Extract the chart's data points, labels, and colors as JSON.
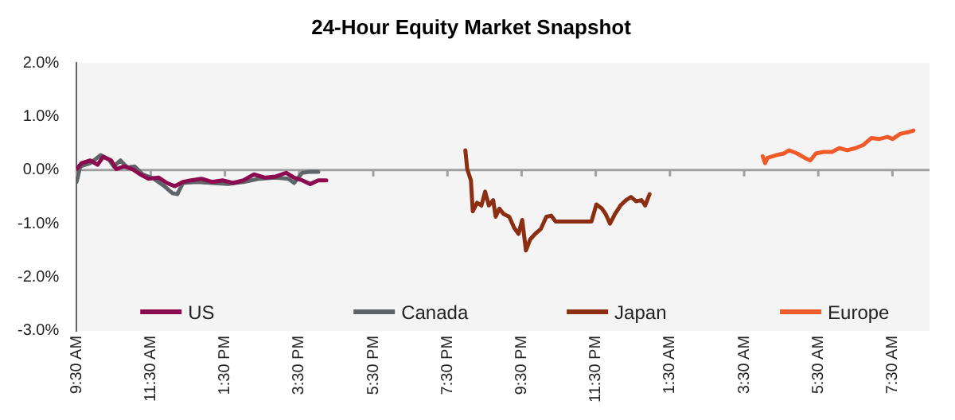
{
  "chart_data": {
    "type": "line",
    "title": "24-Hour Equity Market Snapshot",
    "xlim": [
      "--01-01T09:30",
      "--01-02T08:30"
    ],
    "xticks": [
      {
        "value": "--01-01T09:30",
        "label": "9:30 AM"
      },
      {
        "value": "--01-01T11:30",
        "label": "11:30 AM"
      },
      {
        "value": "--01-01T13:30",
        "label": "1:30 PM"
      },
      {
        "value": "--01-01T15:30",
        "label": "3:30 PM"
      },
      {
        "value": "--01-01T17:30",
        "label": "5:30 PM"
      },
      {
        "value": "--01-01T19:30",
        "label": "7:30 PM"
      },
      {
        "value": "--01-01T21:30",
        "label": "9:30 PM"
      },
      {
        "value": "--01-01T23:30",
        "label": "11:30 PM"
      },
      {
        "value": "--01-02T01:30",
        "label": "1:30 AM"
      },
      {
        "value": "--01-02T03:30",
        "label": "3:30 AM"
      },
      {
        "value": "--01-02T05:30",
        "label": "5:30 AM"
      },
      {
        "value": "--01-02T07:30",
        "label": "7:30 AM"
      }
    ],
    "ylim": [
      -3,
      2
    ],
    "yticks": [
      {
        "value": -3,
        "label": "-3.0%"
      },
      {
        "value": -2,
        "label": "-2.0%"
      },
      {
        "value": -1,
        "label": "-1.0%"
      },
      {
        "value": 0,
        "label": "0.0%"
      },
      {
        "value": 1,
        "label": "1.0%"
      },
      {
        "value": 2,
        "label": "2.0%"
      }
    ],
    "ref_lines": [
      {
        "axis": "y",
        "value": 0,
        "color": "#a0a0a0"
      }
    ],
    "grid": false,
    "legend": "bottom",
    "marker": "none",
    "line_style": "solid",
    "series": [
      {
        "name": "US",
        "color": "#8b0a50",
        "x": [
          "--01-01T09:30",
          "--01-01T09:38",
          "--01-01T09:52",
          "--01-01T10:04",
          "--01-01T10:13",
          "--01-01T10:26",
          "--01-01T10:34",
          "--01-01T10:47",
          "--01-01T11:00",
          "--01-01T11:13",
          "--01-01T11:26",
          "--01-01T11:43",
          "--01-01T11:56",
          "--01-01T12:09",
          "--01-01T12:22",
          "--01-01T12:35",
          "--01-01T12:52",
          "--01-01T13:09",
          "--01-01T13:26",
          "--01-01T13:43",
          "--01-01T14:00",
          "--01-01T14:17",
          "--01-01T14:35",
          "--01-01T14:52",
          "--01-01T15:09",
          "--01-01T15:22",
          "--01-01T15:35",
          "--01-01T15:48",
          "--01-01T16:01",
          "--01-01T16:14"
        ],
        "values": [
          0.02,
          0.13,
          0.18,
          0.1,
          0.25,
          0.18,
          0.02,
          0.07,
          0.02,
          -0.08,
          -0.16,
          -0.14,
          -0.24,
          -0.3,
          -0.22,
          -0.19,
          -0.16,
          -0.22,
          -0.19,
          -0.24,
          -0.19,
          -0.08,
          -0.14,
          -0.12,
          -0.05,
          -0.14,
          -0.19,
          -0.26,
          -0.19,
          -0.19
        ]
      },
      {
        "name": "Canada",
        "color": "#5f6468",
        "x": [
          "--01-01T09:30",
          "--01-01T09:36",
          "--01-01T09:52",
          "--01-01T10:09",
          "--01-01T10:22",
          "--01-01T10:30",
          "--01-01T10:41",
          "--01-01T10:52",
          "--01-01T11:04",
          "--01-01T11:17",
          "--01-01T11:35",
          "--01-01T11:52",
          "--01-01T12:05",
          "--01-01T12:13",
          "--01-01T12:22",
          "--01-01T12:43",
          "--01-01T13:09",
          "--01-01T13:35",
          "--01-01T14:00",
          "--01-01T14:26",
          "--01-01T14:52",
          "--01-01T15:13",
          "--01-01T15:22",
          "--01-01T15:35",
          "--01-01T15:48",
          "--01-01T16:01"
        ],
        "values": [
          -0.22,
          0.07,
          0.13,
          0.28,
          0.2,
          0.07,
          0.18,
          0.05,
          0.07,
          -0.08,
          -0.16,
          -0.3,
          -0.43,
          -0.45,
          -0.24,
          -0.22,
          -0.24,
          -0.26,
          -0.22,
          -0.16,
          -0.14,
          -0.16,
          -0.24,
          -0.05,
          -0.03,
          -0.03
        ]
      },
      {
        "name": "Japan",
        "color": "#8b2e12",
        "x": [
          "--01-01T19:59",
          "--01-01T20:02",
          "--01-01T20:08",
          "--01-01T20:11",
          "--01-01T20:18",
          "--01-01T20:25",
          "--01-01T20:31",
          "--01-01T20:37",
          "--01-01T20:44",
          "--01-01T20:48",
          "--01-01T20:54",
          "--01-01T21:01",
          "--01-01T21:10",
          "--01-01T21:18",
          "--01-01T21:25",
          "--01-01T21:31",
          "--01-01T21:37",
          "--01-01T21:44",
          "--01-01T21:52",
          "--01-01T22:01",
          "--01-01T22:10",
          "--01-01T22:18",
          "--01-01T22:25",
          "--01-01T23:23",
          "--01-01T23:31",
          "--01-01T23:40",
          "--01-01T23:46",
          "--01-01T23:53",
          "--01-02T00:01",
          "--01-02T00:10",
          "--01-02T00:19",
          "--01-02T00:27",
          "--01-02T00:35",
          "--01-02T00:44",
          "--01-02T00:50",
          "--01-02T00:57"
        ],
        "values": [
          0.37,
          0.02,
          -0.19,
          -0.77,
          -0.61,
          -0.66,
          -0.4,
          -0.66,
          -0.56,
          -0.87,
          -0.72,
          -0.82,
          -0.87,
          -1.08,
          -1.19,
          -0.93,
          -1.5,
          -1.29,
          -1.19,
          -1.1,
          -0.87,
          -0.85,
          -0.96,
          -0.96,
          -0.64,
          -0.72,
          -0.82,
          -1.0,
          -0.82,
          -0.66,
          -0.56,
          -0.5,
          -0.58,
          -0.56,
          -0.66,
          -0.45
        ]
      },
      {
        "name": "Europe",
        "color": "#f05a28",
        "x": [
          "--01-02T04:00",
          "--01-02T04:04",
          "--01-02T04:08",
          "--01-02T04:22",
          "--01-02T04:34",
          "--01-02T04:43",
          "--01-02T04:56",
          "--01-02T05:08",
          "--01-02T05:17",
          "--01-02T05:26",
          "--01-02T05:38",
          "--01-02T05:52",
          "--01-02T06:04",
          "--01-02T06:17",
          "--01-02T06:30",
          "--01-02T06:43",
          "--01-02T06:56",
          "--01-02T07:08",
          "--01-02T07:22",
          "--01-02T07:30",
          "--01-02T07:43",
          "--01-02T07:56",
          "--01-02T08:04"
        ],
        "values": [
          0.26,
          0.13,
          0.23,
          0.28,
          0.31,
          0.37,
          0.31,
          0.23,
          0.18,
          0.31,
          0.34,
          0.34,
          0.41,
          0.37,
          0.41,
          0.47,
          0.6,
          0.58,
          0.62,
          0.58,
          0.68,
          0.71,
          0.74
        ]
      }
    ]
  }
}
